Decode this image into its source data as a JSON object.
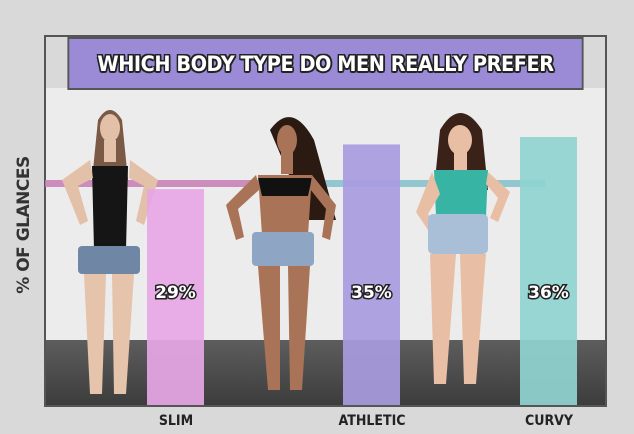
{
  "chart_data": {
    "type": "bar",
    "title": "WHICH BODY TYPE DO MEN REALLY PREFER",
    "ylabel": "% OF GLANCES",
    "xlabel": "",
    "categories": [
      "SLIM",
      "ATHLETIC",
      "CURVY"
    ],
    "values": [
      29,
      35,
      36
    ],
    "data_labels": [
      "29%",
      "35%",
      "36%"
    ],
    "colors": [
      "#e7a6e6",
      "#a99be0",
      "#8fd4cf"
    ],
    "grid": false
  },
  "colors": {
    "title_bar": "#9b8bd6",
    "stripe_pink": "#c77bb4",
    "stripe_teal": "#6cb8c4"
  }
}
